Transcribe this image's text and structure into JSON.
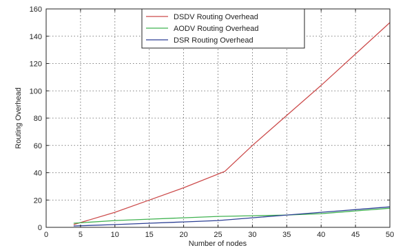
{
  "chart_data": {
    "type": "line",
    "xlabel": "Number of nodes",
    "ylabel": "Routing Overhead",
    "xlim": [
      0,
      50
    ],
    "ylim": [
      0,
      160
    ],
    "xticks": [
      0,
      5,
      10,
      15,
      20,
      25,
      30,
      35,
      40,
      45,
      50
    ],
    "yticks": [
      0,
      20,
      40,
      60,
      80,
      100,
      120,
      140,
      160
    ],
    "grid": true,
    "legend_position": "top-center",
    "series": [
      {
        "name": "DSDV Routing Overhead",
        "color": "#cc4b4b",
        "x": [
          4,
          10,
          15,
          20,
          26,
          30,
          35,
          40,
          45,
          50
        ],
        "y": [
          2,
          11,
          20,
          29,
          41,
          60,
          82,
          104,
          127,
          150
        ]
      },
      {
        "name": "AODV Routing Overhead",
        "color": "#3fb24f",
        "x": [
          4,
          10,
          15,
          20,
          25,
          30,
          35,
          40,
          45,
          50
        ],
        "y": [
          3,
          5,
          6,
          7,
          8,
          8.5,
          9,
          10,
          12,
          14
        ]
      },
      {
        "name": "DSR Routing Overhead",
        "color": "#2b3f94",
        "x": [
          4,
          10,
          15,
          20,
          25,
          30,
          35,
          40,
          45,
          50
        ],
        "y": [
          1,
          2,
          3,
          4,
          5,
          7,
          9,
          11,
          13,
          15
        ]
      }
    ]
  }
}
